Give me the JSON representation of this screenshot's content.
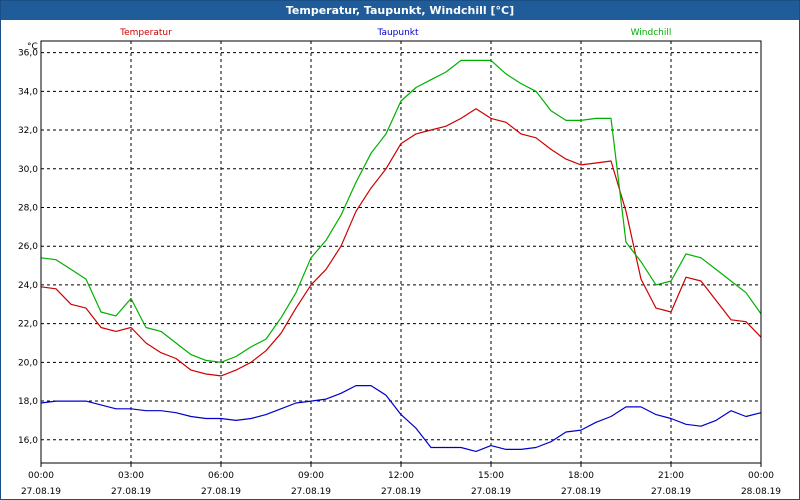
{
  "window": {
    "title": "Temperatur, Taupunkt, Windchill [°C]"
  },
  "chart_data": {
    "type": "line",
    "title": "Temperatur, Taupunkt, Windchill [°C]",
    "ylabel": "°C",
    "ylim": [
      14.8,
      36.6
    ],
    "yticks": [
      16.0,
      18.0,
      20.0,
      22.0,
      24.0,
      26.0,
      28.0,
      30.0,
      32.0,
      34.0,
      36.0
    ],
    "ytick_labels": [
      "16,0",
      "18,0",
      "20,0",
      "22,0",
      "24,0",
      "26,0",
      "28,0",
      "30,0",
      "32,0",
      "34,0",
      "36,0"
    ],
    "xlim": [
      0,
      24
    ],
    "xticks": [
      0,
      3,
      6,
      9,
      12,
      15,
      18,
      21,
      24
    ],
    "xtick_labels": [
      {
        "time": "00:00",
        "date": "27.08.19"
      },
      {
        "time": "03:00",
        "date": "27.08.19"
      },
      {
        "time": "06:00",
        "date": "27.08.19"
      },
      {
        "time": "09:00",
        "date": "27.08.19"
      },
      {
        "time": "12:00",
        "date": "27.08.19"
      },
      {
        "time": "15:00",
        "date": "27.08.19"
      },
      {
        "time": "18:00",
        "date": "27.08.19"
      },
      {
        "time": "21:00",
        "date": "27.08.19"
      },
      {
        "time": "00:00",
        "date": "28.08.19"
      }
    ],
    "grid": true,
    "legend_position": "top",
    "series": [
      {
        "name": "Temperatur",
        "color": "#cc0000",
        "x": [
          0,
          0.5,
          1,
          1.5,
          2,
          2.5,
          3,
          3.5,
          4,
          4.5,
          5,
          5.5,
          6,
          6.5,
          7,
          7.5,
          8,
          8.5,
          9,
          9.5,
          10,
          10.5,
          11,
          11.5,
          12,
          12.5,
          13,
          13.5,
          14,
          14.5,
          15,
          15.5,
          16,
          16.5,
          17,
          17.5,
          18,
          18.5,
          19,
          19.5,
          20,
          20.5,
          21,
          21.5,
          22,
          22.5,
          23,
          23.5,
          24
        ],
        "y": [
          23.9,
          23.8,
          23.0,
          22.8,
          21.8,
          21.6,
          21.8,
          21.0,
          20.5,
          20.2,
          19.6,
          19.4,
          19.3,
          19.6,
          20.0,
          20.6,
          21.5,
          22.8,
          24.0,
          24.8,
          26.0,
          27.8,
          29.0,
          30.0,
          31.3,
          31.8,
          32.0,
          32.2,
          32.6,
          33.1,
          32.6,
          32.4,
          31.8,
          31.6,
          31.0,
          30.5,
          30.2,
          30.3,
          30.4,
          27.8,
          24.3,
          22.8,
          22.6,
          24.4,
          24.2,
          23.2,
          22.2,
          22.1,
          21.3
        ]
      },
      {
        "name": "Taupunkt",
        "color": "#0000cc",
        "x": [
          0,
          0.5,
          1,
          1.5,
          2,
          2.5,
          3,
          3.5,
          4,
          4.5,
          5,
          5.5,
          6,
          6.5,
          7,
          7.5,
          8,
          8.5,
          9,
          9.5,
          10,
          10.5,
          11,
          11.5,
          12,
          12.5,
          13,
          13.5,
          14,
          14.5,
          15,
          15.5,
          16,
          16.5,
          17,
          17.5,
          18,
          18.5,
          19,
          19.5,
          20,
          20.5,
          21,
          21.5,
          22,
          22.5,
          23,
          23.5,
          24
        ],
        "y": [
          17.9,
          18.0,
          18.0,
          18.0,
          17.8,
          17.6,
          17.6,
          17.5,
          17.5,
          17.4,
          17.2,
          17.1,
          17.1,
          17.0,
          17.1,
          17.3,
          17.6,
          17.9,
          18.0,
          18.1,
          18.4,
          18.8,
          18.8,
          18.3,
          17.3,
          16.6,
          15.6,
          15.6,
          15.6,
          15.4,
          15.7,
          15.5,
          15.5,
          15.6,
          15.9,
          16.4,
          16.5,
          16.9,
          17.2,
          17.7,
          17.7,
          17.3,
          17.1,
          16.8,
          16.7,
          17.0,
          17.5,
          17.2,
          17.4
        ]
      },
      {
        "name": "Windchill",
        "color": "#00b000",
        "x": [
          0,
          0.5,
          1,
          1.5,
          2,
          2.5,
          3,
          3.5,
          4,
          4.5,
          5,
          5.5,
          6,
          6.5,
          7,
          7.5,
          8,
          8.5,
          9,
          9.5,
          10,
          10.5,
          11,
          11.5,
          12,
          12.5,
          13,
          13.5,
          14,
          14.5,
          15,
          15.5,
          16,
          16.5,
          17,
          17.5,
          18,
          18.5,
          19,
          19.5,
          20,
          20.5,
          21,
          21.5,
          22,
          22.5,
          23,
          23.5,
          24
        ],
        "y": [
          25.4,
          25.3,
          24.8,
          24.3,
          22.6,
          22.4,
          23.3,
          21.8,
          21.6,
          21.0,
          20.4,
          20.1,
          20.0,
          20.3,
          20.8,
          21.2,
          22.3,
          23.6,
          25.4,
          26.3,
          27.6,
          29.3,
          30.8,
          31.8,
          33.5,
          34.2,
          34.6,
          35.0,
          35.6,
          35.6,
          35.6,
          34.9,
          34.4,
          34.0,
          33.0,
          32.5,
          32.5,
          32.6,
          32.6,
          26.2,
          25.2,
          24.0,
          24.2,
          25.6,
          25.4,
          24.8,
          24.2,
          23.6,
          22.5
        ]
      }
    ]
  }
}
